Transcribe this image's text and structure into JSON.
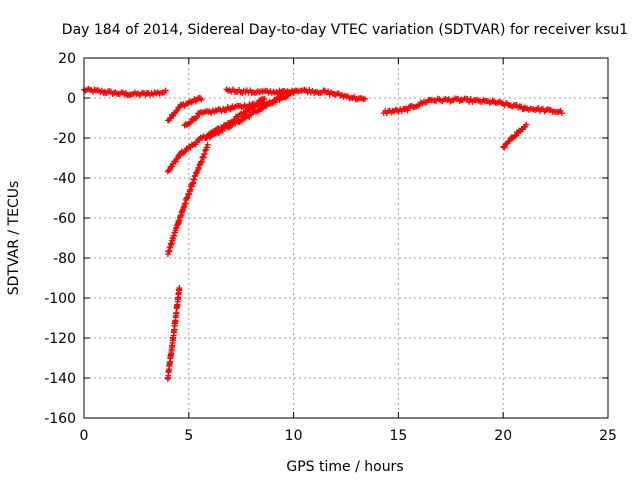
{
  "chart_data": {
    "type": "scatter",
    "title": "Day 184 of 2014, Sidereal Day-to-day VTEC variation (SDTVAR) for receiver ksu1",
    "xlabel": "GPS time / hours",
    "ylabel": "SDTVAR / TECUs",
    "xlim": [
      0,
      25
    ],
    "ylim": [
      -160,
      20
    ],
    "x_ticks": [
      0,
      5,
      10,
      15,
      20,
      25
    ],
    "x_tick_labels": [
      "0",
      "5",
      "10",
      "15",
      "20",
      "25"
    ],
    "y_ticks": [
      20,
      0,
      -20,
      -40,
      -60,
      -80,
      -100,
      -120,
      -140,
      -160
    ],
    "y_tick_labels": [
      "20",
      "0",
      "-20",
      "-40",
      "-60",
      "-80",
      "-100",
      "-120",
      "-140",
      "-160"
    ],
    "grid": true,
    "marker": "+",
    "color": "#ff0000",
    "series": [
      {
        "segments": [
          {
            "from": [
              0.0,
              4
            ],
            "to": [
              1.0,
              3
            ]
          },
          {
            "from": [
              1.0,
              3
            ],
            "to": [
              2.0,
              2
            ]
          },
          {
            "from": [
              2.0,
              2
            ],
            "to": [
              3.0,
              2
            ]
          },
          {
            "from": [
              3.0,
              2
            ],
            "to": [
              3.9,
              3
            ]
          },
          {
            "from": [
              4.0,
              -11
            ],
            "to": [
              4.6,
              -4
            ]
          },
          {
            "from": [
              4.6,
              -4
            ],
            "to": [
              5.6,
              0
            ]
          },
          {
            "from": [
              4.0,
              -37
            ],
            "to": [
              4.6,
              -28
            ]
          },
          {
            "from": [
              4.6,
              -28
            ],
            "to": [
              5.5,
              -21
            ]
          },
          {
            "from": [
              5.5,
              -21
            ],
            "to": [
              7.0,
              -12
            ]
          },
          {
            "from": [
              7.0,
              -12
            ],
            "to": [
              8.6,
              0
            ]
          },
          {
            "from": [
              4.0,
              -78
            ],
            "to": [
              4.5,
              -62
            ]
          },
          {
            "from": [
              4.5,
              -62
            ],
            "to": [
              5.2,
              -42
            ]
          },
          {
            "from": [
              5.2,
              -42
            ],
            "to": [
              5.9,
              -24
            ]
          },
          {
            "from": [
              4.0,
              -140
            ],
            "to": [
              4.3,
              -116
            ]
          },
          {
            "from": [
              4.3,
              -116
            ],
            "to": [
              4.55,
              -95
            ]
          },
          {
            "from": [
              4.8,
              -14
            ],
            "to": [
              5.5,
              -8
            ]
          },
          {
            "from": [
              5.5,
              -8
            ],
            "to": [
              7.0,
              -5
            ]
          },
          {
            "from": [
              7.0,
              -5
            ],
            "to": [
              9.0,
              -2
            ]
          },
          {
            "from": [
              9.0,
              -2
            ],
            "to": [
              10.0,
              3
            ]
          },
          {
            "from": [
              5.8,
              -20
            ],
            "to": [
              7.5,
              -11
            ]
          },
          {
            "from": [
              7.5,
              -11
            ],
            "to": [
              9.5,
              1
            ]
          },
          {
            "from": [
              6.8,
              4
            ],
            "to": [
              8.0,
              3
            ]
          },
          {
            "from": [
              8.0,
              3
            ],
            "to": [
              10.0,
              3
            ]
          },
          {
            "from": [
              10.0,
              4
            ],
            "to": [
              11.5,
              3
            ]
          },
          {
            "from": [
              11.5,
              3
            ],
            "to": [
              13.4,
              -1
            ]
          },
          {
            "from": [
              14.3,
              -7
            ],
            "to": [
              15.3,
              -6
            ]
          },
          {
            "from": [
              15.3,
              -6
            ],
            "to": [
              16.5,
              -1
            ]
          },
          {
            "from": [
              16.5,
              -1
            ],
            "to": [
              18.0,
              -1
            ]
          },
          {
            "from": [
              18.0,
              -1
            ],
            "to": [
              19.5,
              -2
            ]
          },
          {
            "from": [
              19.5,
              -2
            ],
            "to": [
              21.0,
              -5
            ]
          },
          {
            "from": [
              21.0,
              -5
            ],
            "to": [
              22.8,
              -7
            ]
          },
          {
            "from": [
              20.0,
              -25
            ],
            "to": [
              20.6,
              -18
            ]
          },
          {
            "from": [
              20.6,
              -18
            ],
            "to": [
              21.1,
              -14
            ]
          }
        ]
      }
    ]
  }
}
